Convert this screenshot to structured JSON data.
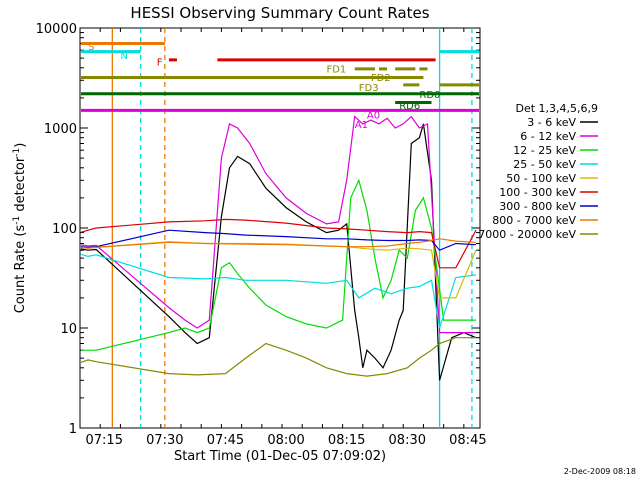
{
  "chart_data": {
    "type": "line",
    "title": "HESSI Observing Summary Count Rates",
    "xlabel": "Start Time (01-Dec-05 07:09:02)",
    "ylabel_main": "Count Rate (s",
    "ylabel_sup": "-1",
    "ylabel_tail": " detector",
    "ylabel_sup2": "-1",
    "ylabel_end": ")",
    "y_scale": "log",
    "ylim": [
      1,
      10000
    ],
    "xlim": [
      "07:09",
      "08:48"
    ],
    "y_ticks": [
      "1",
      "10",
      "100",
      "1000",
      "10000"
    ],
    "x_ticks": [
      "07:15",
      "07:30",
      "07:45",
      "08:00",
      "08:15",
      "08:30",
      "08:45"
    ],
    "footer_date": "2-Dec-2009 08:18",
    "legend": {
      "title": "Det 1,3,4,5,6,9",
      "placement": "right",
      "entries": [
        {
          "label": "3 - 6 keV",
          "color": "#000000"
        },
        {
          "label": "6 - 12 keV",
          "color": "#dd00dd"
        },
        {
          "label": "12 - 25 keV",
          "color": "#00dd00"
        },
        {
          "label": "25 - 50 keV",
          "color": "#00dddd"
        },
        {
          "label": "50 - 100 keV",
          "color": "#ddbb00"
        },
        {
          "label": "100 - 300 keV",
          "color": "#dd0000"
        },
        {
          "label": "300 - 800 keV",
          "color": "#0000cc"
        },
        {
          "label": "800 - 7000 keV",
          "color": "#ee7700"
        },
        {
          "label": "7000 - 20000 keV",
          "color": "#888800"
        }
      ]
    },
    "flag_labels": [
      {
        "label": "S",
        "color": "#ee7700"
      },
      {
        "label": "N",
        "color": "#00dddd"
      },
      {
        "label": "F",
        "color": "#dd0000"
      },
      {
        "label": "FD1",
        "color": "#888800"
      },
      {
        "label": "FD2",
        "color": "#888800"
      },
      {
        "label": "FD3",
        "color": "#888800"
      },
      {
        "label": "RD0",
        "color": "#006600"
      },
      {
        "label": "RD6",
        "color": "#006600"
      },
      {
        "label": "A0",
        "color": "#dd00dd"
      },
      {
        "label": "A1",
        "color": "#dd00dd"
      }
    ],
    "flag_bars": [
      {
        "name": "S",
        "color": "#ee7700",
        "y": 7000,
        "segments": [
          [
            "07:09",
            "07:30"
          ]
        ]
      },
      {
        "name": "N",
        "color": "#00dddd",
        "y": 5800,
        "segments": [
          [
            "07:09",
            "07:24"
          ],
          [
            "08:38",
            "08:48"
          ]
        ]
      },
      {
        "name": "F",
        "color": "#dd0000",
        "y": 4800,
        "segments": [
          [
            "07:31",
            "07:33"
          ],
          [
            "07:43",
            "08:37"
          ]
        ]
      },
      {
        "name": "FD1",
        "color": "#888800",
        "y": 3900,
        "segments": [
          [
            "08:17",
            "08:22"
          ],
          [
            "08:23",
            "08:25"
          ],
          [
            "08:27",
            "08:32"
          ],
          [
            "08:33",
            "08:35"
          ]
        ]
      },
      {
        "name": "FD-base",
        "color": "#888800",
        "y": 3200,
        "segments": [
          [
            "07:09",
            "08:34"
          ]
        ]
      },
      {
        "name": "FD2",
        "color": "#888800",
        "y": 2700,
        "segments": [
          [
            "08:29",
            "08:33"
          ],
          [
            "08:38",
            "08:48"
          ]
        ]
      },
      {
        "name": "RD0",
        "color": "#006600",
        "y": 2200,
        "segments": [
          [
            "07:09",
            "08:48"
          ]
        ]
      },
      {
        "name": "RD6",
        "color": "#006600",
        "y": 1800,
        "segments": [
          [
            "08:27",
            "08:36"
          ]
        ]
      },
      {
        "name": "A",
        "color": "#dd00dd",
        "y": 1500,
        "segments": [
          [
            "07:09",
            "08:48"
          ]
        ]
      }
    ],
    "vertical_markers": [
      {
        "time": "07:17",
        "color": "#ee7700",
        "style": "solid"
      },
      {
        "time": "07:24",
        "color": "#00dddd",
        "style": "dashed"
      },
      {
        "time": "07:30",
        "color": "#ee7700",
        "style": "dashed"
      },
      {
        "time": "08:38",
        "color": "#00dddd",
        "style": "solid"
      },
      {
        "time": "08:46",
        "color": "#00dddd",
        "style": "dashed"
      }
    ],
    "series": [
      {
        "name": "3 - 6 keV",
        "color": "#000000",
        "times": [
          "07:09",
          "07:11",
          "07:13",
          "07:31",
          "07:35",
          "07:38",
          "07:41",
          "07:44",
          "07:46",
          "07:48",
          "07:51",
          "07:55",
          "08:00",
          "08:05",
          "08:10",
          "08:13",
          "08:15",
          "08:17",
          "08:18",
          "08:19",
          "08:20",
          "08:22",
          "08:24",
          "08:26",
          "08:28",
          "08:29",
          "08:31",
          "08:33",
          "08:34",
          "08:36",
          "08:38",
          "08:41",
          "08:44",
          "08:47"
        ],
        "values": [
          62,
          60,
          61,
          13,
          9,
          7,
          8,
          130,
          400,
          520,
          440,
          250,
          160,
          115,
          90,
          95,
          110,
          15,
          8,
          4,
          6,
          5,
          4,
          6,
          12,
          15,
          700,
          800,
          1100,
          300,
          3,
          8,
          9,
          8
        ]
      },
      {
        "name": "6 - 12 keV",
        "color": "#dd00dd",
        "times": [
          "07:09",
          "07:11",
          "07:13",
          "07:31",
          "07:35",
          "07:38",
          "07:41",
          "07:44",
          "07:46",
          "07:48",
          "07:51",
          "07:55",
          "08:00",
          "08:05",
          "08:10",
          "08:13",
          "08:15",
          "08:17",
          "08:19",
          "08:21",
          "08:23",
          "08:25",
          "08:27",
          "08:29",
          "08:31",
          "08:33",
          "08:35",
          "08:38",
          "08:41",
          "08:44",
          "08:47"
        ],
        "values": [
          68,
          66,
          67,
          16,
          12,
          10,
          12,
          500,
          1100,
          1000,
          700,
          350,
          200,
          140,
          110,
          115,
          300,
          1300,
          1100,
          1200,
          1100,
          1250,
          1000,
          1100,
          1300,
          1000,
          1100,
          9,
          9,
          9,
          9
        ]
      },
      {
        "name": "12 - 25 keV",
        "color": "#00dd00",
        "times": [
          "07:09",
          "07:11",
          "07:13",
          "07:31",
          "07:35",
          "07:38",
          "07:41",
          "07:44",
          "07:46",
          "07:48",
          "07:51",
          "07:55",
          "08:00",
          "08:05",
          "08:10",
          "08:14",
          "08:16",
          "08:18",
          "08:20",
          "08:22",
          "08:24",
          "08:26",
          "08:28",
          "08:30",
          "08:32",
          "08:34",
          "08:36",
          "08:39",
          "08:43",
          "08:47"
        ],
        "values": [
          6,
          6,
          6,
          9,
          10,
          9,
          10,
          40,
          45,
          35,
          25,
          17,
          13,
          11,
          10,
          12,
          200,
          300,
          150,
          50,
          20,
          30,
          60,
          50,
          150,
          200,
          100,
          12,
          12,
          12
        ]
      },
      {
        "name": "25 - 50 keV",
        "color": "#00dddd",
        "times": [
          "07:09",
          "07:11",
          "07:13",
          "07:31",
          "07:40",
          "07:45",
          "07:50",
          "08:00",
          "08:10",
          "08:15",
          "08:18",
          "08:22",
          "08:26",
          "08:30",
          "08:33",
          "08:36",
          "08:38",
          "08:42",
          "08:47"
        ],
        "values": [
          55,
          52,
          54,
          32,
          31,
          32,
          30,
          30,
          28,
          30,
          20,
          25,
          22,
          25,
          26,
          30,
          10,
          32,
          34
        ]
      },
      {
        "name": "50 - 100 keV",
        "color": "#ddbb00",
        "times": [
          "07:09",
          "07:11",
          "07:13",
          "07:31",
          "07:40",
          "07:45",
          "07:50",
          "08:00",
          "08:10",
          "08:15",
          "08:20",
          "08:25",
          "08:30",
          "08:33",
          "08:36",
          "08:38",
          "08:42",
          "08:47"
        ],
        "values": [
          65,
          63,
          64,
          73,
          70,
          70,
          70,
          69,
          66,
          65,
          62,
          60,
          63,
          62,
          60,
          20,
          20,
          60
        ]
      },
      {
        "name": "100 - 300 keV",
        "color": "#dd0000",
        "times": [
          "07:09",
          "07:11",
          "07:13",
          "07:31",
          "07:40",
          "07:45",
          "07:50",
          "08:00",
          "08:10",
          "08:15",
          "08:20",
          "08:25",
          "08:30",
          "08:33",
          "08:36",
          "08:38",
          "08:42",
          "08:47"
        ],
        "values": [
          90,
          95,
          100,
          115,
          118,
          122,
          120,
          112,
          100,
          98,
          95,
          92,
          90,
          92,
          90,
          40,
          40,
          95
        ]
      },
      {
        "name": "300 - 800 keV",
        "color": "#0000cc",
        "times": [
          "07:09",
          "07:11",
          "07:13",
          "07:31",
          "07:40",
          "07:45",
          "07:50",
          "08:00",
          "08:10",
          "08:15",
          "08:20",
          "08:25",
          "08:30",
          "08:33",
          "08:36",
          "08:38",
          "08:42",
          "08:47"
        ],
        "values": [
          65,
          64,
          65,
          95,
          90,
          88,
          85,
          82,
          78,
          78,
          76,
          75,
          75,
          76,
          75,
          60,
          70,
          68
        ]
      },
      {
        "name": "800 - 7000 keV",
        "color": "#ee7700",
        "times": [
          "07:09",
          "07:11",
          "07:13",
          "07:31",
          "07:40",
          "07:50",
          "08:00",
          "08:10",
          "08:15",
          "08:20",
          "08:25",
          "08:30",
          "08:33",
          "08:36",
          "08:38",
          "08:42",
          "08:47"
        ],
        "values": [
          64,
          63,
          64,
          72,
          70,
          69,
          68,
          66,
          65,
          65,
          66,
          70,
          72,
          75,
          78,
          74,
          72
        ]
      },
      {
        "name": "7000 - 20000 keV",
        "color": "#888800",
        "times": [
          "07:09",
          "07:11",
          "07:13",
          "07:31",
          "07:38",
          "07:45",
          "07:50",
          "07:55",
          "08:00",
          "08:05",
          "08:10",
          "08:15",
          "08:20",
          "08:25",
          "08:30",
          "08:33",
          "08:36",
          "08:38",
          "08:42",
          "08:47"
        ],
        "values": [
          4.5,
          4.8,
          4.6,
          3.5,
          3.4,
          3.5,
          5,
          7,
          6,
          5,
          4,
          3.5,
          3.3,
          3.5,
          4,
          5,
          6,
          7,
          8,
          8
        ]
      }
    ]
  }
}
